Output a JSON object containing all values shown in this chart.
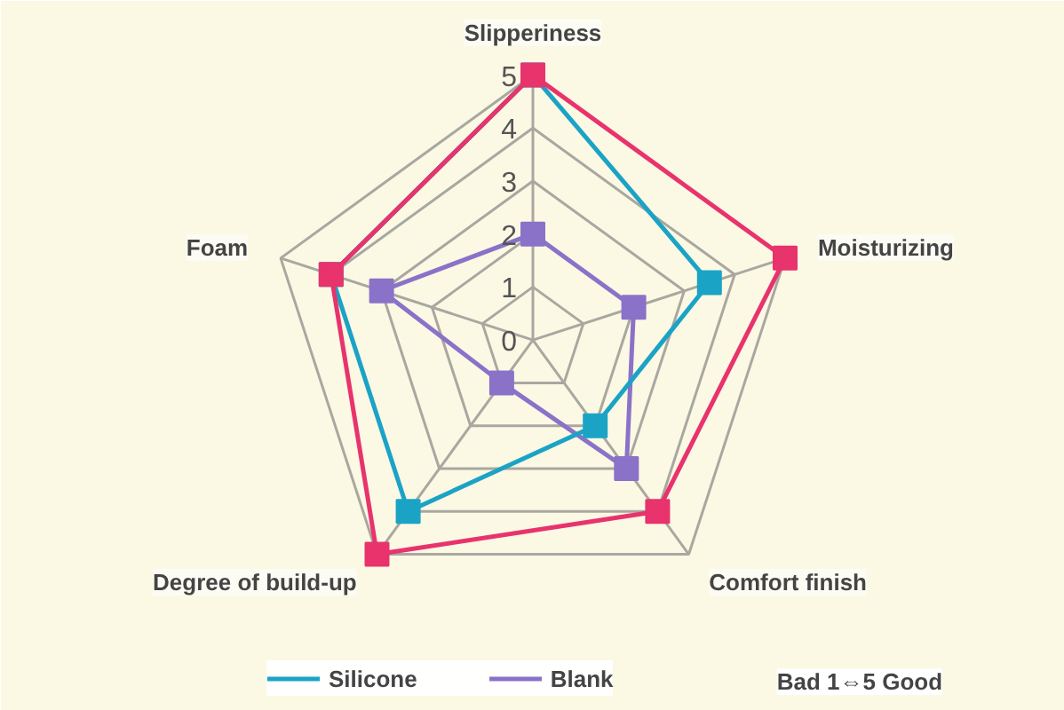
{
  "chart_data": {
    "type": "radar",
    "categories": [
      "Slipperiness",
      "Moisturizing",
      "Comfort finish",
      "Degree of build-up",
      "Foam"
    ],
    "series": [
      {
        "color": "#e8336d",
        "values": [
          5,
          5,
          4,
          5,
          4
        ]
      },
      {
        "name": "Silicone",
        "color": "#1ba3c6",
        "values": [
          5,
          3.5,
          2,
          4,
          4
        ]
      },
      {
        "name": "Blank",
        "color": "#8a72c8",
        "values": [
          2,
          2,
          3,
          1,
          3
        ]
      }
    ],
    "ylim": [
      0,
      5
    ],
    "yticks": [
      0,
      1,
      2,
      3,
      4,
      5
    ],
    "grid": true,
    "marker": "square",
    "legend": "bottom",
    "annotations": [
      "Bad 1⇔5 Good"
    ]
  }
}
